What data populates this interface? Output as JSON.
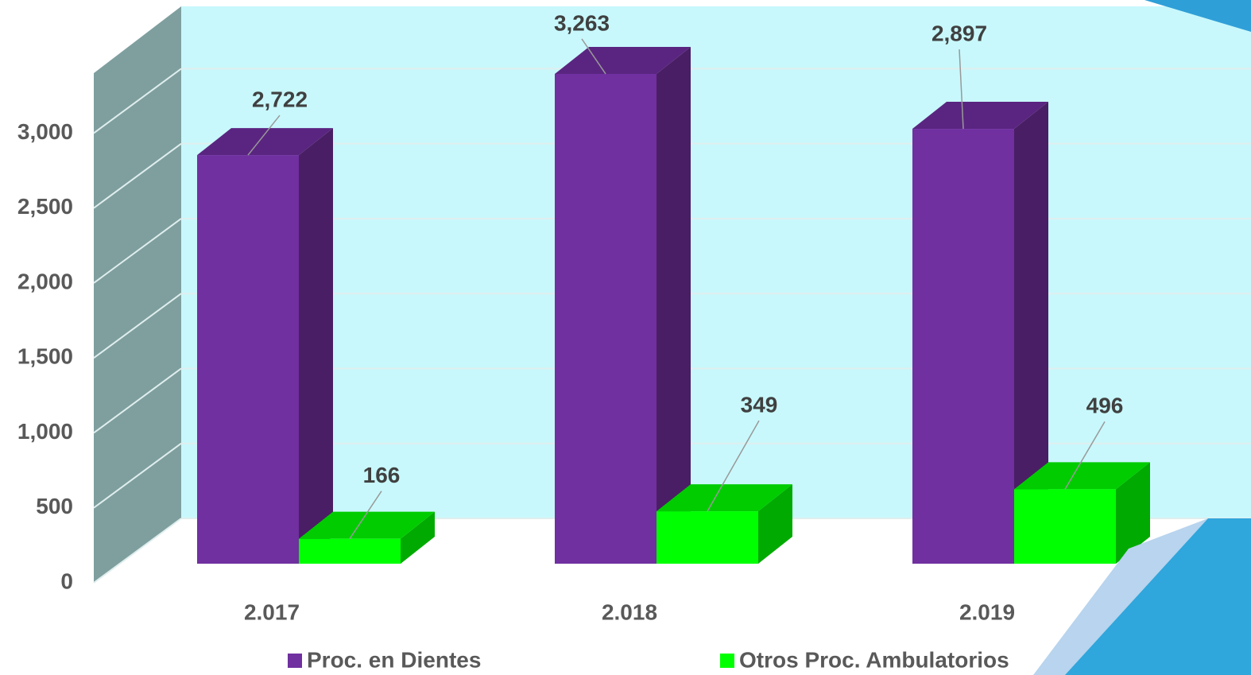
{
  "chart_data": {
    "type": "bar3d",
    "categories": [
      "2.017",
      "2.018",
      "2.019"
    ],
    "series": [
      {
        "name": "Proc. en Dientes",
        "color": "#7030a0",
        "values": [
          2722,
          3263,
          2897
        ],
        "value_labels": [
          "2,722",
          "3,263",
          "2,897"
        ]
      },
      {
        "name": "Otros Proc. Ambulatorios",
        "color": "#00ff00",
        "values": [
          166,
          349,
          496
        ]
      }
    ],
    "ylim": [
      0,
      3400
    ],
    "yticks": [
      0,
      500,
      {
        "value": 1000,
        "label": "1,000"
      },
      {
        "value": 1500,
        "label": "1,500"
      },
      {
        "value": 2000,
        "label": "2,000"
      },
      {
        "value": 2500,
        "label": "2,500"
      },
      {
        "value": 3000,
        "label": "3,000"
      }
    ],
    "grid": true,
    "legend": "bottom"
  }
}
